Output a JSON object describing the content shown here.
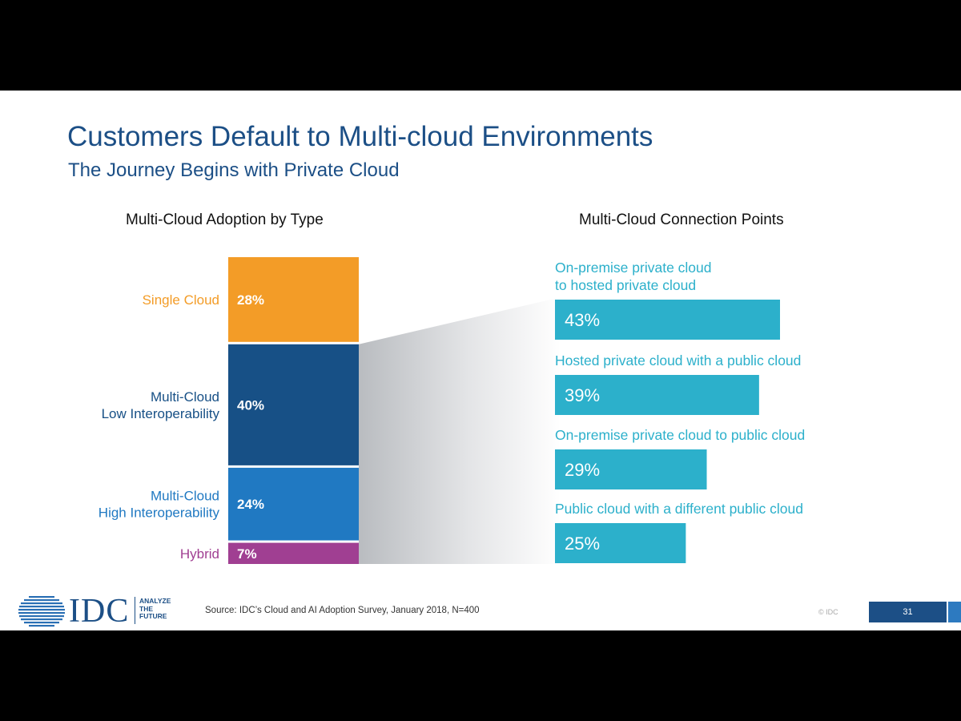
{
  "slide": {
    "title": "Customers Default to Multi-cloud Environments",
    "subtitle": "The Journey Begins with Private Cloud"
  },
  "colors": {
    "title": "#1c4f86",
    "single_cloud": "#f39c27",
    "multi_cloud_low": "#175086",
    "multi_cloud_high": "#2079c2",
    "hybrid": "#a03f92",
    "connection_bar": "#2cb0cb",
    "connection_label": "#2cb0cb"
  },
  "chart_data": [
    {
      "type": "bar",
      "stacked": true,
      "title": "Multi-Cloud Adoption by Type",
      "categories": [
        "Single Cloud",
        "Multi-Cloud\nLow Interoperability",
        "Multi-Cloud\nHigh Interoperability",
        "Hybrid"
      ],
      "values": [
        28,
        40,
        24,
        7
      ],
      "value_labels": [
        "28%",
        "40%",
        "24%",
        "7%"
      ],
      "unit": "%",
      "colors": [
        "#f39c27",
        "#175086",
        "#2079c2",
        "#a03f92"
      ],
      "label_colors": [
        "#f39c27",
        "#175086",
        "#2079c2",
        "#a03f92"
      ]
    },
    {
      "type": "bar",
      "orientation": "horizontal",
      "title": "Multi-Cloud Connection Points",
      "categories": [
        "On-premise private cloud\nto hosted private cloud",
        "Hosted private cloud with a public cloud",
        "On-premise private cloud to public cloud",
        "Public cloud with a different public cloud"
      ],
      "values": [
        43,
        39,
        29,
        25
      ],
      "value_labels": [
        "43%",
        "39%",
        "29%",
        "25%"
      ],
      "unit": "%",
      "color": "#2cb0cb"
    }
  ],
  "footer": {
    "logo_text": "IDC",
    "tagline": [
      "ANALYZE",
      "THE",
      "FUTURE"
    ],
    "source": "Source: IDC’s Cloud and AI Adoption Survey, January 2018, N=400",
    "copyright": "© IDC",
    "page_number": "31"
  }
}
